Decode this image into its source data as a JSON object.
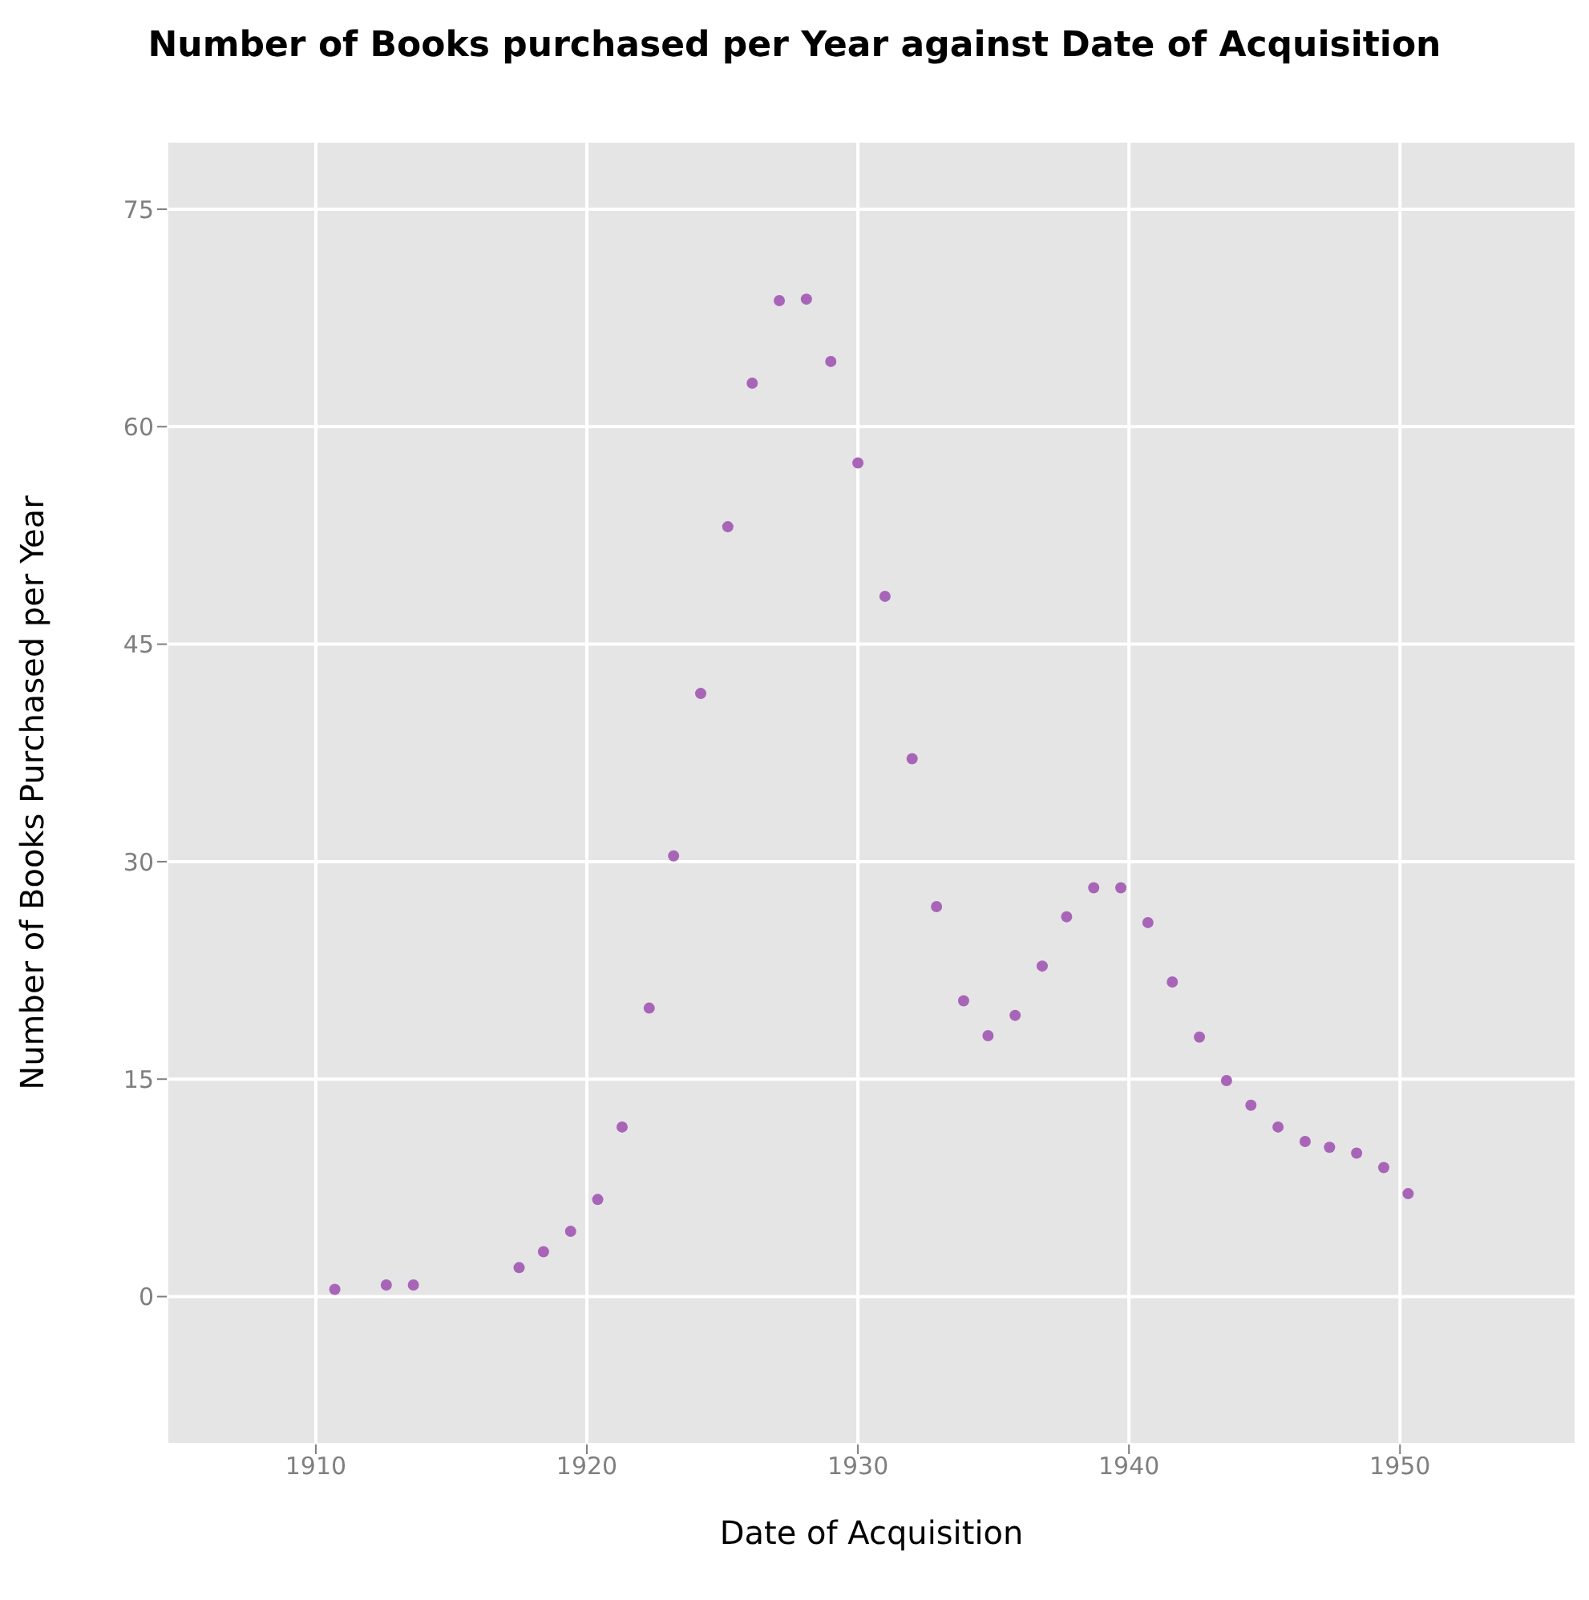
{
  "chart_data": {
    "type": "scatter",
    "title": "Number of Books purchased per Year against Date of Acquisition",
    "xlabel": "Date of Acquisition",
    "ylabel": "Number of Books Purchased per Year",
    "x": [
      1910.7,
      1912.6,
      1913.6,
      1917.5,
      1918.4,
      1919.4,
      1920.4,
      1921.3,
      1922.3,
      1923.2,
      1924.2,
      1925.2,
      1926.1,
      1927.1,
      1928.1,
      1929.0,
      1930.0,
      1931.0,
      1932.0,
      1932.9,
      1933.9,
      1934.8,
      1935.8,
      1936.8,
      1937.7,
      1938.7,
      1939.7,
      1940.7,
      1941.6,
      1942.6,
      1943.6,
      1944.5,
      1945.5,
      1946.5,
      1947.4,
      1948.4,
      1949.4,
      1950.3
    ],
    "series": [
      {
        "color": "#a865b8",
        "values": [
          0.5,
          0.8,
          0.8,
          2.0,
          3.1,
          4.5,
          6.7,
          11.7,
          19.9,
          30.4,
          41.6,
          53.1,
          63.0,
          68.7,
          68.8,
          64.5,
          57.5,
          48.3,
          37.1,
          26.9,
          20.4,
          18.0,
          19.4,
          22.8,
          26.2,
          28.2,
          28.2,
          25.8,
          21.7,
          17.9,
          14.9,
          13.2,
          11.7,
          10.7,
          10.3,
          9.9,
          8.9,
          7.1
        ]
      }
    ],
    "xlim": [
      1904.5,
      1956.5
    ],
    "xticks": [
      1910,
      1920,
      1930,
      1940,
      1950
    ],
    "ylim": [
      -10.2,
      79.7
    ],
    "yticks": [
      0,
      15,
      30,
      45,
      60,
      75
    ],
    "grid": true,
    "marker": "circle",
    "legend": false
  }
}
